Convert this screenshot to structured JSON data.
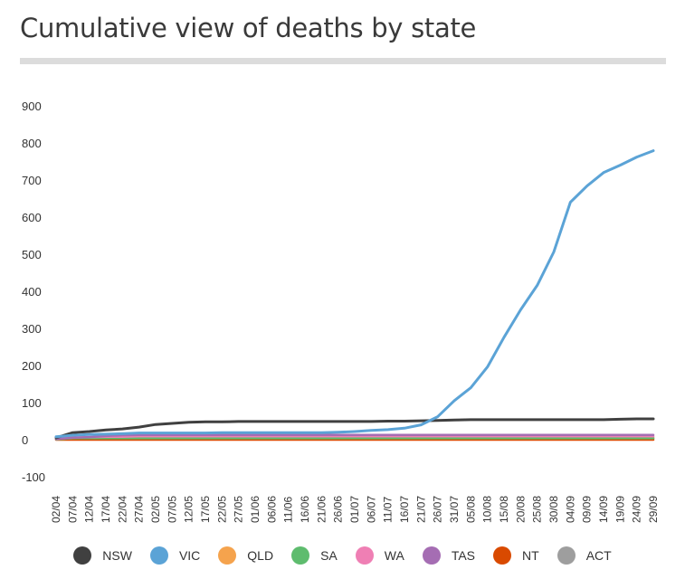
{
  "title": "Cumulative view of deaths by state",
  "chart_data": {
    "type": "line",
    "title": "Cumulative view of deaths by state",
    "xlabel": "",
    "ylabel": "",
    "ylim": [
      -100,
      900
    ],
    "yticks": [
      900,
      800,
      700,
      600,
      500,
      400,
      300,
      200,
      100,
      0,
      -100
    ],
    "x": [
      "02/04",
      "07/04",
      "12/04",
      "17/04",
      "22/04",
      "27/04",
      "02/05",
      "07/05",
      "12/05",
      "17/05",
      "22/05",
      "27/05",
      "01/06",
      "06/06",
      "11/06",
      "16/06",
      "21/06",
      "26/06",
      "01/07",
      "06/07",
      "11/07",
      "16/07",
      "21/07",
      "26/07",
      "31/07",
      "05/08",
      "10/08",
      "15/08",
      "20/08",
      "25/08",
      "30/08",
      "04/09",
      "09/09",
      "14/09",
      "19/09",
      "24/09",
      "29/09"
    ],
    "series": [
      {
        "name": "NSW",
        "color": "#404040",
        "values": [
          5,
          19,
          22,
          26,
          29,
          34,
          41,
          44,
          47,
          48,
          48,
          49,
          49,
          49,
          49,
          49,
          49,
          49,
          49,
          49,
          50,
          50,
          51,
          52,
          53,
          54,
          54,
          54,
          54,
          54,
          54,
          54,
          54,
          54,
          55,
          56,
          56
        ]
      },
      {
        "name": "VIC",
        "color": "#5ba3d6",
        "values": [
          8,
          12,
          14,
          15,
          16,
          18,
          18,
          18,
          18,
          18,
          19,
          19,
          19,
          19,
          19,
          19,
          19,
          20,
          22,
          25,
          27,
          31,
          40,
          62,
          105,
          140,
          196,
          276,
          350,
          416,
          506,
          640,
          684,
          720,
          740,
          762,
          779
        ]
      },
      {
        "name": "QLD",
        "color": "#f5a34d",
        "values": [
          2,
          4,
          5,
          5,
          6,
          6,
          6,
          6,
          6,
          6,
          6,
          6,
          6,
          6,
          6,
          6,
          6,
          6,
          6,
          6,
          6,
          6,
          6,
          6,
          6,
          6,
          6,
          6,
          6,
          6,
          6,
          6,
          6,
          6,
          6,
          6,
          6
        ]
      },
      {
        "name": "SA",
        "color": "#5ebc6e",
        "values": [
          1,
          4,
          4,
          4,
          4,
          4,
          4,
          4,
          4,
          4,
          4,
          4,
          4,
          4,
          4,
          4,
          4,
          4,
          4,
          4,
          4,
          4,
          4,
          4,
          4,
          4,
          4,
          4,
          4,
          4,
          4,
          4,
          4,
          4,
          4,
          4,
          4
        ]
      },
      {
        "name": "WA",
        "color": "#ef7fb4",
        "values": [
          2,
          6,
          7,
          8,
          8,
          9,
          9,
          9,
          9,
          9,
          9,
          9,
          9,
          9,
          9,
          9,
          9,
          9,
          9,
          9,
          9,
          9,
          9,
          9,
          9,
          9,
          9,
          9,
          9,
          9,
          9,
          9,
          9,
          9,
          9,
          9,
          9
        ]
      },
      {
        "name": "TAS",
        "color": "#a56db3",
        "values": [
          2,
          5,
          7,
          10,
          12,
          13,
          13,
          13,
          13,
          13,
          13,
          13,
          13,
          13,
          13,
          13,
          13,
          13,
          13,
          13,
          13,
          13,
          13,
          13,
          13,
          13,
          13,
          13,
          13,
          13,
          13,
          13,
          13,
          13,
          13,
          13,
          13
        ]
      },
      {
        "name": "NT",
        "color": "#d94a00",
        "values": [
          0,
          0,
          0,
          0,
          0,
          0,
          0,
          0,
          0,
          0,
          0,
          0,
          0,
          0,
          0,
          0,
          0,
          0,
          0,
          0,
          0,
          0,
          0,
          0,
          0,
          0,
          0,
          0,
          0,
          0,
          0,
          0,
          0,
          0,
          0,
          0,
          0
        ]
      },
      {
        "name": "ACT",
        "color": "#9e9e9e",
        "values": [
          1,
          2,
          3,
          3,
          3,
          3,
          3,
          3,
          3,
          3,
          3,
          3,
          3,
          3,
          3,
          3,
          3,
          3,
          3,
          3,
          3,
          3,
          3,
          3,
          3,
          3,
          3,
          3,
          3,
          3,
          3,
          3,
          3,
          3,
          3,
          3,
          3
        ]
      }
    ],
    "legend": "bottom"
  }
}
